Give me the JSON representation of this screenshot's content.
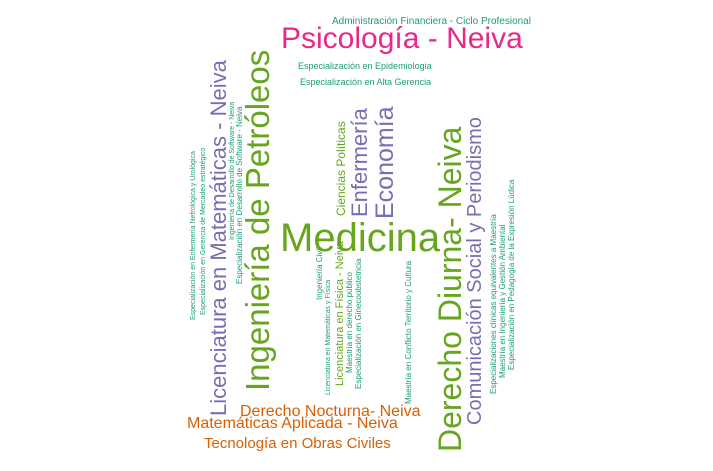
{
  "colors": {
    "teal": "#1b9e77",
    "pink": "#e7298a",
    "purple": "#7570b3",
    "green": "#66a61e",
    "orange": "#d95f02"
  },
  "words": [
    {
      "id": "w01",
      "text": "Administración Financiera - Ciclo Profesional",
      "color": "teal"
    },
    {
      "id": "w02",
      "text": "Psicología - Neiva",
      "color": "pink"
    },
    {
      "id": "w03",
      "text": "Especialización en Epidemiologia",
      "color": "teal"
    },
    {
      "id": "w04",
      "text": "Especialización en Alta Gerencia",
      "color": "teal"
    },
    {
      "id": "w05",
      "text": "Licenciatura en Matemáticas - Neiva",
      "color": "purple"
    },
    {
      "id": "w06",
      "text": "Ingeniería de Petróleos",
      "color": "green"
    },
    {
      "id": "w07",
      "text": "Derecho Diurna- Neiva",
      "color": "green"
    },
    {
      "id": "w08",
      "text": "Comunicación Social y Periodismo",
      "color": "purple"
    },
    {
      "id": "w09",
      "text": "Medicina",
      "color": "green"
    },
    {
      "id": "w10",
      "text": "Enfermería",
      "color": "purple"
    },
    {
      "id": "w11",
      "text": "Economía",
      "color": "purple"
    },
    {
      "id": "w12",
      "text": "Ciencias Políticas",
      "color": "green"
    },
    {
      "id": "w13",
      "text": "Especialización en Enfermería Nefrológica y Urológica",
      "color": "teal"
    },
    {
      "id": "w14",
      "text": "Especialización en Gerencia de Mercadeo estratégico",
      "color": "teal"
    },
    {
      "id": "w15",
      "text": "Especialización en Desarrollo de Software - Neiva",
      "color": "teal"
    },
    {
      "id": "w16",
      "text": "Ingeniería de Desarrollo de Software - Neiva",
      "color": "teal"
    },
    {
      "id": "w17",
      "text": "Ingeniería Civil",
      "color": "teal"
    },
    {
      "id": "w18",
      "text": "Licenciatura en Matemáticas y Física",
      "color": "teal"
    },
    {
      "id": "w19",
      "text": "Licenciatura en Física - Neiva",
      "color": "green"
    },
    {
      "id": "w20",
      "text": "Maestría en derecho público",
      "color": "teal"
    },
    {
      "id": "w21",
      "text": "Especialización en Ginecoobstetricia",
      "color": "teal"
    },
    {
      "id": "w22",
      "text": "Maestría en Conflicto Territorio y Cultura",
      "color": "teal"
    },
    {
      "id": "w23",
      "text": "Especializaciones clínicas equivalentes a Maestría",
      "color": "teal"
    },
    {
      "id": "w24",
      "text": "Maestría en Ingeniería y Gestión Ambiental",
      "color": "teal"
    },
    {
      "id": "w25",
      "text": "Especialización en Pedagogía de la Expresión Lúdica",
      "color": "teal"
    },
    {
      "id": "w26",
      "text": "Derecho Nocturna- Neiva",
      "color": "orange"
    },
    {
      "id": "w27",
      "text": "Matemáticas Aplicada - Neiva",
      "color": "orange"
    },
    {
      "id": "w28",
      "text": "Tecnología en Obras Civiles",
      "color": "orange"
    }
  ]
}
